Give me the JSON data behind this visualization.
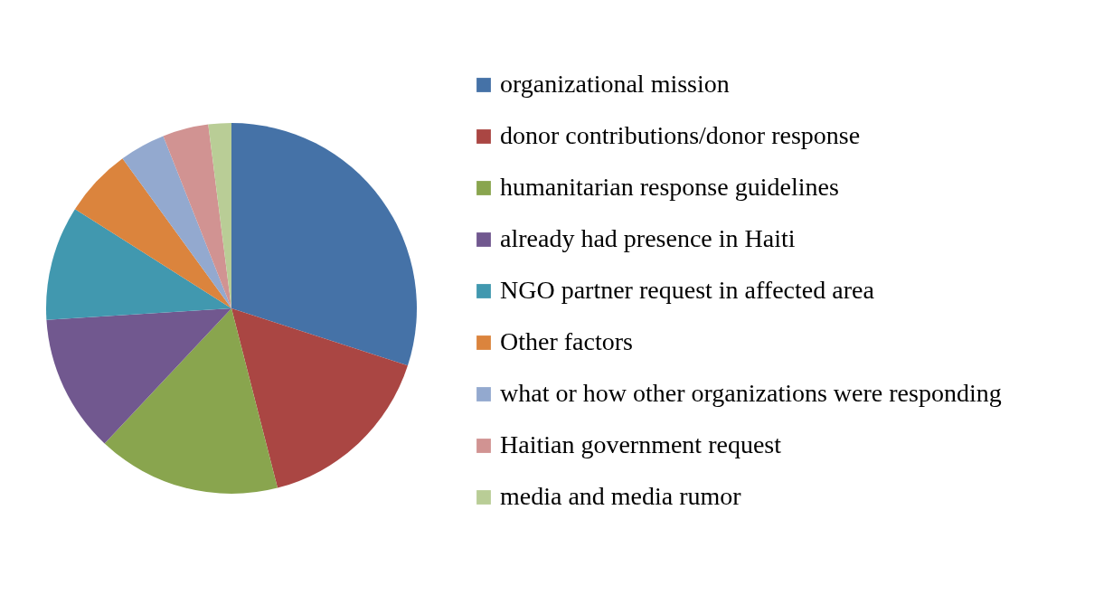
{
  "chart_data": {
    "type": "pie",
    "categories": [
      "organizational mission",
      "donor contributions/donor response",
      "humanitarian response guidelines",
      "already had presence in Haiti",
      "NGO partner request in affected area",
      "Other factors",
      "what or how other organizations were responding",
      "Haitian government request",
      "media and media rumor"
    ],
    "values": [
      30,
      16,
      16,
      12,
      10,
      6,
      4,
      4,
      2
    ],
    "colors": [
      "#4572a7",
      "#aa4643",
      "#89a54e",
      "#71588f",
      "#4198af",
      "#db843d",
      "#93a9cf",
      "#d19392",
      "#b9cd96"
    ],
    "legend": "right"
  }
}
